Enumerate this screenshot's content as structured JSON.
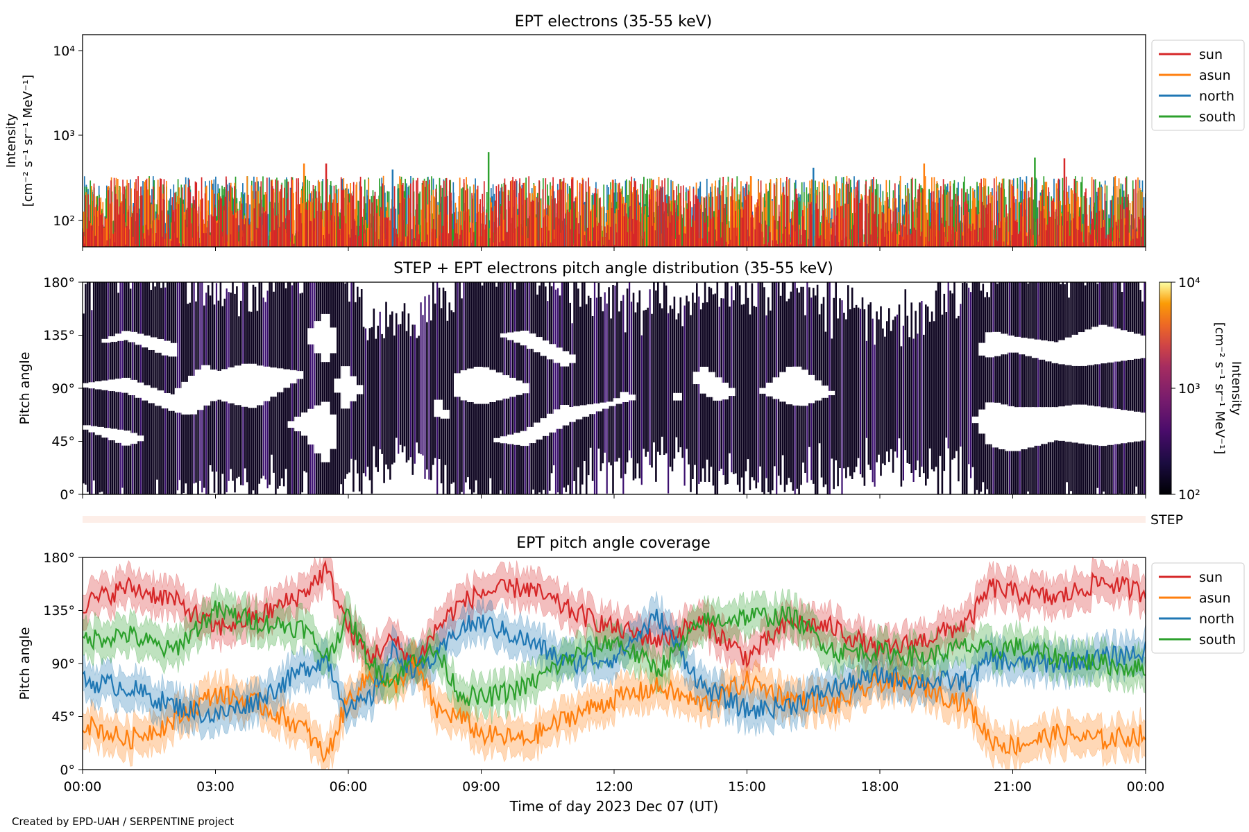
{
  "footer": "Created by EPD-UAH / SERPENTINE project",
  "colors": {
    "sun": "#d62728",
    "asun": "#ff7f0e",
    "north": "#1f77b4",
    "south": "#2ca02c",
    "step_band": "#fdeee8"
  },
  "chart_data": [
    {
      "type": "line",
      "title": "EPT electrons (35-55 keV)",
      "ylabel": "Intensity",
      "yunit": "[cm⁻² s⁻¹ sr⁻¹ MeV⁻¹]",
      "yscale": "log",
      "ylim": [
        50,
        15000
      ],
      "yticks": [
        "10²",
        "10³",
        "10⁴"
      ],
      "x_range": [
        "2023-12-07 00:00",
        "2023-12-08 00:00"
      ],
      "legend": "top-right outside",
      "series": [
        {
          "name": "sun",
          "color": "#d62728",
          "baseline": 90,
          "spread": 0.55,
          "peaks": [
            {
              "x": "05:30",
              "y": 470
            },
            {
              "x": "22:10",
              "y": 540
            }
          ]
        },
        {
          "name": "asun",
          "color": "#ff7f0e",
          "baseline": 90,
          "spread": 0.55,
          "peaks": [
            {
              "x": "05:00",
              "y": 470
            },
            {
              "x": "19:00",
              "y": 470
            }
          ]
        },
        {
          "name": "north",
          "color": "#1f77b4",
          "baseline": 90,
          "spread": 0.55,
          "peaks": [
            {
              "x": "07:00",
              "y": 400
            },
            {
              "x": "16:30",
              "y": 420
            }
          ]
        },
        {
          "name": "south",
          "color": "#2ca02c",
          "baseline": 90,
          "spread": 0.55,
          "peaks": [
            {
              "x": "09:10",
              "y": 640
            },
            {
              "x": "21:30",
              "y": 550
            }
          ]
        }
      ]
    },
    {
      "type": "heatmap",
      "title": "STEP + EPT electrons pitch angle distribution (35-55 keV)",
      "ylabel": "Pitch angle",
      "yticks": [
        "0°",
        "45°",
        "90°",
        "135°",
        "180°"
      ],
      "ylim": [
        0,
        180
      ],
      "colorbar": {
        "label": "Intensity",
        "unit": "[cm⁻² s⁻¹ sr⁻¹ MeV⁻¹]",
        "ticks": [
          "10²",
          "10³",
          "10⁴"
        ],
        "range": [
          100,
          10000
        ],
        "scale": "log",
        "colormap": "inferno"
      },
      "side_label": "STEP",
      "typical_intensity": 100
    },
    {
      "type": "line",
      "title": "EPT pitch angle coverage",
      "ylabel": "Pitch angle",
      "xlabel": "Time of day 2023 Dec 07 (UT)",
      "yticks": [
        "0°",
        "45°",
        "90°",
        "135°",
        "180°"
      ],
      "ylim": [
        0,
        180
      ],
      "x_ticks": [
        "00:00",
        "03:00",
        "06:00",
        "09:00",
        "12:00",
        "15:00",
        "18:00",
        "21:00",
        "00:00"
      ],
      "legend": "top-right outside",
      "band_halfwidth_deg": 15,
      "series": [
        {
          "name": "sun",
          "color": "#d62728",
          "hours": [
            0,
            1,
            2,
            3,
            4,
            5,
            5.5,
            6,
            6.5,
            7,
            7.5,
            8,
            8.5,
            9,
            10,
            11,
            12,
            13,
            14,
            15,
            16,
            17,
            18,
            19,
            20,
            20.5,
            21,
            22,
            23,
            24
          ],
          "values": [
            140,
            155,
            145,
            120,
            130,
            150,
            170,
            120,
            95,
            110,
            90,
            120,
            140,
            150,
            155,
            135,
            120,
            110,
            125,
            95,
            125,
            120,
            100,
            110,
            125,
            155,
            150,
            145,
            160,
            150
          ]
        },
        {
          "name": "asun",
          "color": "#ff7f0e",
          "hours": [
            0,
            1,
            2,
            3,
            4,
            5,
            5.5,
            6,
            6.5,
            7,
            7.5,
            8,
            8.5,
            9,
            10,
            11,
            12,
            13,
            14,
            15,
            16,
            17,
            18,
            19,
            20,
            20.5,
            21,
            22,
            23,
            24
          ],
          "values": [
            40,
            25,
            40,
            65,
            55,
            35,
            10,
            60,
            80,
            70,
            90,
            50,
            45,
            30,
            25,
            45,
            60,
            70,
            55,
            75,
            60,
            55,
            75,
            70,
            55,
            25,
            20,
            30,
            25,
            30
          ]
        },
        {
          "name": "north",
          "color": "#1f77b4",
          "hours": [
            0,
            1,
            2,
            3,
            4,
            5,
            5.5,
            6,
            6.5,
            7,
            7.5,
            8,
            8.5,
            9,
            10,
            11,
            12,
            13,
            14,
            15,
            16,
            17,
            18,
            19,
            20,
            20.5,
            21,
            22,
            23,
            24
          ],
          "values": [
            75,
            70,
            55,
            45,
            60,
            85,
            95,
            50,
            60,
            100,
            85,
            95,
            120,
            125,
            110,
            90,
            95,
            130,
            70,
            50,
            55,
            70,
            80,
            75,
            75,
            95,
            90,
            90,
            95,
            100
          ]
        },
        {
          "name": "south",
          "color": "#2ca02c",
          "hours": [
            0,
            1,
            2,
            3,
            4,
            5,
            5.5,
            6,
            6.5,
            7,
            7.5,
            8,
            8.5,
            9,
            10,
            11,
            12,
            13,
            14,
            15,
            16,
            17,
            18,
            19,
            20,
            20.5,
            21,
            22,
            23,
            24
          ],
          "values": [
            110,
            115,
            100,
            135,
            125,
            120,
            95,
            130,
            90,
            75,
            95,
            100,
            65,
            60,
            70,
            95,
            110,
            85,
            125,
            130,
            130,
            100,
            100,
            95,
            105,
            100,
            105,
            95,
            90,
            85
          ]
        }
      ]
    }
  ]
}
